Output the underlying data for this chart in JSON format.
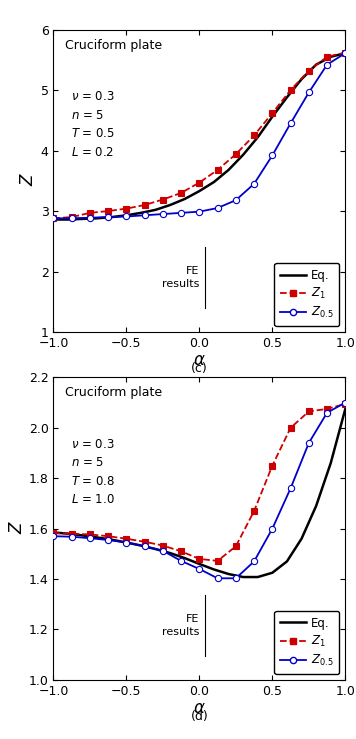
{
  "panel_c": {
    "title": "Cruciform plate",
    "ylabel": "Z",
    "xlabel": "α",
    "label": "(c)",
    "ylim": [
      1,
      6
    ],
    "yticks": [
      1,
      2,
      3,
      4,
      5,
      6
    ],
    "xlim": [
      -1.0,
      1.0
    ],
    "xticks": [
      -1.0,
      -0.5,
      0.0,
      0.5,
      1.0
    ],
    "nu": "0.3",
    "n": "5",
    "T": "0.5",
    "L": "0.2",
    "eq_x": [
      -1.0,
      -0.9,
      -0.8,
      -0.7,
      -0.6,
      -0.5,
      -0.4,
      -0.3,
      -0.2,
      -0.1,
      0.0,
      0.1,
      0.2,
      0.3,
      0.4,
      0.5,
      0.6,
      0.7,
      0.8,
      0.9,
      1.0
    ],
    "eq_y": [
      2.86,
      2.86,
      2.87,
      2.88,
      2.9,
      2.93,
      2.97,
      3.02,
      3.1,
      3.2,
      3.33,
      3.48,
      3.68,
      3.93,
      4.22,
      4.56,
      4.88,
      5.18,
      5.42,
      5.55,
      5.61
    ],
    "z1_x": [
      -1.0,
      -0.875,
      -0.75,
      -0.625,
      -0.5,
      -0.375,
      -0.25,
      -0.125,
      0.0,
      0.125,
      0.25,
      0.375,
      0.5,
      0.625,
      0.75,
      0.875,
      1.0
    ],
    "z1_y": [
      2.88,
      2.9,
      2.97,
      3.0,
      3.04,
      3.1,
      3.19,
      3.3,
      3.47,
      3.68,
      3.94,
      4.25,
      4.62,
      5.0,
      5.32,
      5.55,
      5.62
    ],
    "z05_x": [
      -1.0,
      -0.875,
      -0.75,
      -0.625,
      -0.5,
      -0.375,
      -0.25,
      -0.125,
      0.0,
      0.125,
      0.25,
      0.375,
      0.5,
      0.625,
      0.75,
      0.875,
      1.0
    ],
    "z05_y": [
      2.88,
      2.88,
      2.89,
      2.9,
      2.91,
      2.93,
      2.95,
      2.97,
      2.99,
      3.05,
      3.18,
      3.45,
      3.92,
      4.45,
      4.96,
      5.42,
      5.61
    ]
  },
  "panel_d": {
    "title": "Cruciform plate",
    "ylabel": "Z",
    "xlabel": "α",
    "label": "(d)",
    "ylim": [
      1.0,
      2.2
    ],
    "yticks": [
      1.0,
      1.2,
      1.4,
      1.6,
      1.8,
      2.0,
      2.2
    ],
    "xlim": [
      -1.0,
      1.0
    ],
    "xticks": [
      -1.0,
      -0.5,
      0.0,
      0.5,
      1.0
    ],
    "nu": "0.3",
    "n": "5",
    "T": "0.8",
    "L": "1.0",
    "eq_x": [
      -1.0,
      -0.9,
      -0.8,
      -0.7,
      -0.6,
      -0.5,
      -0.4,
      -0.3,
      -0.2,
      -0.1,
      0.0,
      0.1,
      0.2,
      0.3,
      0.4,
      0.5,
      0.6,
      0.7,
      0.8,
      0.9,
      1.0
    ],
    "eq_y": [
      1.585,
      1.58,
      1.573,
      1.565,
      1.556,
      1.545,
      1.533,
      1.519,
      1.503,
      1.483,
      1.46,
      1.438,
      1.42,
      1.408,
      1.408,
      1.425,
      1.47,
      1.56,
      1.69,
      1.86,
      2.075
    ],
    "z1_x": [
      -1.0,
      -0.875,
      -0.75,
      -0.625,
      -0.5,
      -0.375,
      -0.25,
      -0.125,
      0.0,
      0.125,
      0.25,
      0.375,
      0.5,
      0.625,
      0.75,
      0.875,
      1.0
    ],
    "z1_y": [
      1.582,
      1.58,
      1.577,
      1.57,
      1.56,
      1.548,
      1.533,
      1.51,
      1.48,
      1.472,
      1.53,
      1.67,
      1.85,
      2.0,
      2.065,
      2.075,
      2.095
    ],
    "z05_x": [
      -1.0,
      -0.875,
      -0.75,
      -0.625,
      -0.5,
      -0.375,
      -0.25,
      -0.125,
      0.0,
      0.125,
      0.25,
      0.375,
      0.5,
      0.625,
      0.75,
      0.875,
      1.0
    ],
    "z05_y": [
      1.57,
      1.568,
      1.562,
      1.555,
      1.545,
      1.53,
      1.512,
      1.472,
      1.44,
      1.403,
      1.403,
      1.47,
      1.6,
      1.76,
      1.94,
      2.06,
      2.1
    ]
  },
  "eq_color": "#000000",
  "z1_color": "#cc0000",
  "z05_color": "#0000cc",
  "eq_lw": 1.8,
  "fe_lw": 1.3
}
